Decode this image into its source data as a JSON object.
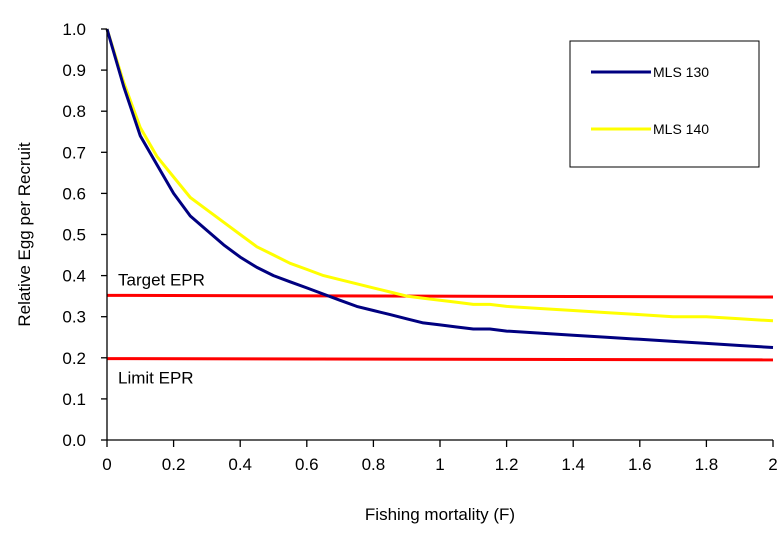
{
  "chart_data": {
    "type": "line",
    "title": "",
    "xlabel": "Fishing mortality (F)",
    "ylabel": "Relative Egg per Recruit",
    "xlim": [
      0,
      2
    ],
    "ylim": [
      0,
      1
    ],
    "x_ticks": [
      "0",
      "0.2",
      "0.4",
      "0.6",
      "0.8",
      "1",
      "1.2",
      "1.4",
      "1.6",
      "1.8",
      "2"
    ],
    "y_ticks": [
      "0.0",
      "0.1",
      "0.2",
      "0.3",
      "0.4",
      "0.5",
      "0.6",
      "0.7",
      "0.8",
      "0.9",
      "1.0"
    ],
    "grid": false,
    "legend_position": "top-right",
    "series": [
      {
        "name": "MLS 130",
        "color": "#000080",
        "x": [
          0,
          0.05,
          0.1,
          0.15,
          0.2,
          0.25,
          0.3,
          0.35,
          0.4,
          0.45,
          0.5,
          0.55,
          0.6,
          0.65,
          0.7,
          0.75,
          0.8,
          0.85,
          0.9,
          0.95,
          1.0,
          1.05,
          1.1,
          1.15,
          1.2,
          1.3,
          1.4,
          1.5,
          1.6,
          1.7,
          1.8,
          1.9,
          2.0
        ],
        "values": [
          1.0,
          0.86,
          0.74,
          0.67,
          0.6,
          0.545,
          0.51,
          0.475,
          0.445,
          0.42,
          0.4,
          0.385,
          0.37,
          0.355,
          0.34,
          0.325,
          0.315,
          0.305,
          0.295,
          0.285,
          0.28,
          0.275,
          0.27,
          0.27,
          0.265,
          0.26,
          0.255,
          0.25,
          0.245,
          0.24,
          0.235,
          0.23,
          0.225
        ]
      },
      {
        "name": "MLS 140",
        "color": "#ffff00",
        "x": [
          0,
          0.05,
          0.1,
          0.15,
          0.2,
          0.25,
          0.3,
          0.35,
          0.4,
          0.45,
          0.5,
          0.55,
          0.6,
          0.65,
          0.7,
          0.75,
          0.8,
          0.85,
          0.9,
          0.95,
          1.0,
          1.05,
          1.1,
          1.15,
          1.2,
          1.3,
          1.4,
          1.5,
          1.6,
          1.7,
          1.8,
          1.9,
          2.0
        ],
        "values": [
          1.0,
          0.87,
          0.76,
          0.69,
          0.64,
          0.59,
          0.56,
          0.53,
          0.5,
          0.47,
          0.45,
          0.43,
          0.415,
          0.4,
          0.39,
          0.38,
          0.37,
          0.36,
          0.35,
          0.345,
          0.34,
          0.335,
          0.33,
          0.33,
          0.325,
          0.32,
          0.315,
          0.31,
          0.305,
          0.3,
          0.3,
          0.295,
          0.29
        ]
      }
    ],
    "reference_lines": [
      {
        "label": "Target EPR",
        "y_start": 0.352,
        "y_end": 0.348,
        "color": "#ff0000"
      },
      {
        "label": "Limit EPR",
        "y_start": 0.198,
        "y_end": 0.195,
        "color": "#ff0000"
      }
    ]
  }
}
